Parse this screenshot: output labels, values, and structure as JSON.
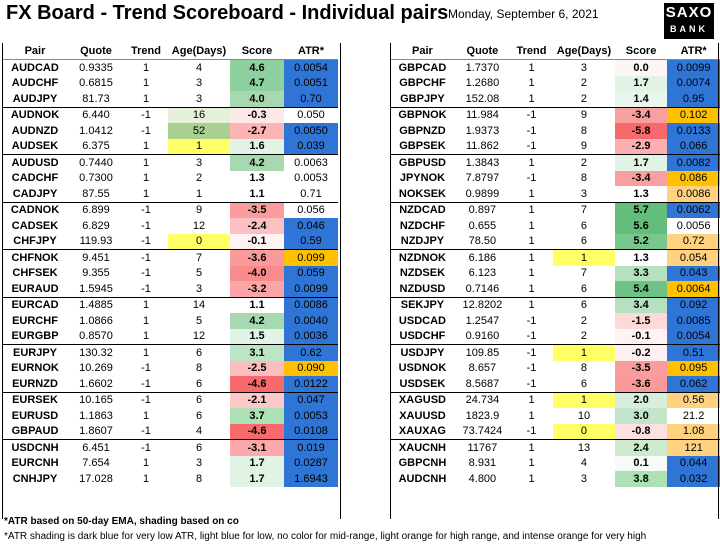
{
  "header": {
    "title": "FX Board - Trend Scoreboard - Individual pairs",
    "date": "Monday, September 6, 2021",
    "logo_line1": "SAXO",
    "logo_line2": "BANK"
  },
  "columns": [
    "Pair",
    "Quote",
    "Trend",
    "Age(Days)",
    "Score",
    "ATR*"
  ],
  "colors": {
    "score_green_strong": "#63be7b",
    "score_green_mid": "#8fd19e",
    "score_green_light": "#c6e8cd",
    "score_red_strong": "#f8696b",
    "score_red_mid": "#f9999a",
    "score_red_light": "#fcd2d2",
    "age_yellow": "#ffff66",
    "age_green": "#a9d08e",
    "atr_dark_blue": "#2e75d6",
    "atr_light_blue": "#9dc3e6",
    "atr_light_orange": "#ffd27f",
    "atr_orange": "#ffa500"
  },
  "left_rows": [
    {
      "pair": "AUDCAD",
      "quote": "0.9335",
      "trend": "1",
      "age": "4",
      "score": "4.6",
      "atr": "0.0054",
      "sc": "#8fd19e",
      "ac": "#2e75d6",
      "ag": "",
      "sep": true
    },
    {
      "pair": "AUDCHF",
      "quote": "0.6815",
      "trend": "1",
      "age": "3",
      "score": "4.7",
      "atr": "0.0051",
      "sc": "#8fd19e",
      "ac": "#2e75d6",
      "ag": ""
    },
    {
      "pair": "AUDJPY",
      "quote": "81.73",
      "trend": "1",
      "age": "3",
      "score": "4.0",
      "atr": "0.70",
      "sc": "#a6d9b0",
      "ac": "#2e75d6",
      "ag": ""
    },
    {
      "pair": "AUDNOK",
      "quote": "6.440",
      "trend": "-1",
      "age": "16",
      "score": "-0.3",
      "atr": "0.050",
      "sc": "#fde8e8",
      "ac": "",
      "ag": "#e4f0d9",
      "sep": true
    },
    {
      "pair": "AUDNZD",
      "quote": "1.0412",
      "trend": "-1",
      "age": "52",
      "score": "-2.7",
      "atr": "0.0050",
      "sc": "#fbb3b4",
      "ac": "#2e75d6",
      "ag": "#a9d08e"
    },
    {
      "pair": "AUDSEK",
      "quote": "6.375",
      "trend": "1",
      "age": "1",
      "score": "1.6",
      "atr": "0.039",
      "sc": "#e1f3e5",
      "ac": "#2e75d6",
      "ag": "#ffff66"
    },
    {
      "pair": "AUDUSD",
      "quote": "0.7440",
      "trend": "1",
      "age": "3",
      "score": "4.2",
      "atr": "0.0063",
      "sc": "#a6d9b0",
      "ac": "",
      "ag": "",
      "sep": true
    },
    {
      "pair": "CADCHF",
      "quote": "0.7300",
      "trend": "1",
      "age": "2",
      "score": "1.3",
      "atr": "0.0053",
      "sc": "",
      "ac": "",
      "ag": ""
    },
    {
      "pair": "CADJPY",
      "quote": "87.55",
      "trend": "1",
      "age": "1",
      "score": "1.1",
      "atr": "0.71",
      "sc": "",
      "ac": "",
      "ag": ""
    },
    {
      "pair": "CADNOK",
      "quote": "6.899",
      "trend": "-1",
      "age": "9",
      "score": "-3.5",
      "atr": "0.056",
      "sc": "#fa9c9d",
      "ac": "",
      "ag": "",
      "sep": true
    },
    {
      "pair": "CADSEK",
      "quote": "6.829",
      "trend": "-1",
      "age": "12",
      "score": "-2.4",
      "atr": "0.046",
      "sc": "#fbc0c1",
      "ac": "#2e75d6",
      "ag": ""
    },
    {
      "pair": "CHFJPY",
      "quote": "119.93",
      "trend": "-1",
      "age": "0",
      "score": "-0.1",
      "atr": "0.59",
      "sc": "#fef2f2",
      "ac": "#2e75d6",
      "ag": "#ffff66"
    },
    {
      "pair": "CHFNOK",
      "quote": "9.451",
      "trend": "-1",
      "age": "7",
      "score": "-3.6",
      "atr": "0.099",
      "sc": "#fa9a9b",
      "ac": "#ffc000",
      "ag": "",
      "sep": true
    },
    {
      "pair": "CHFSEK",
      "quote": "9.355",
      "trend": "-1",
      "age": "5",
      "score": "-4.0",
      "atr": "0.059",
      "sc": "#f98b8c",
      "ac": "#2e75d6",
      "ag": ""
    },
    {
      "pair": "EURAUD",
      "quote": "1.5945",
      "trend": "-1",
      "age": "3",
      "score": "-3.2",
      "atr": "0.0099",
      "sc": "#fba5a6",
      "ac": "#2e75d6",
      "ag": ""
    },
    {
      "pair": "EURCAD",
      "quote": "1.4885",
      "trend": "1",
      "age": "14",
      "score": "1.1",
      "atr": "0.0086",
      "sc": "",
      "ac": "#2e75d6",
      "ag": "",
      "sep": true
    },
    {
      "pair": "EURCHF",
      "quote": "1.0866",
      "trend": "1",
      "age": "5",
      "score": "4.2",
      "atr": "0.0040",
      "sc": "#a6d9b0",
      "ac": "#2e75d6",
      "ag": ""
    },
    {
      "pair": "EURGBP",
      "quote": "0.8570",
      "trend": "1",
      "age": "12",
      "score": "1.5",
      "atr": "0.0036",
      "sc": "#e1f3e5",
      "ac": "#2e75d6",
      "ag": ""
    },
    {
      "pair": "EURJPY",
      "quote": "130.32",
      "trend": "1",
      "age": "6",
      "score": "3.1",
      "atr": "0.62",
      "sc": "#bde4c5",
      "ac": "#2e75d6",
      "ag": "",
      "sep": true
    },
    {
      "pair": "EURNOK",
      "quote": "10.269",
      "trend": "-1",
      "age": "8",
      "score": "-2.5",
      "atr": "0.090",
      "sc": "#fbbdbe",
      "ac": "#ffc000",
      "ag": ""
    },
    {
      "pair": "EURNZD",
      "quote": "1.6602",
      "trend": "-1",
      "age": "6",
      "score": "-4.6",
      "atr": "0.0122",
      "sc": "#f8696b",
      "ac": "#2e75d6",
      "ag": ""
    },
    {
      "pair": "EURSEK",
      "quote": "10.165",
      "trend": "-1",
      "age": "6",
      "score": "-2.1",
      "atr": "0.047",
      "sc": "#fcc8c8",
      "ac": "#2e75d6",
      "ag": "",
      "sep": true
    },
    {
      "pair": "EURUSD",
      "quote": "1.1863",
      "trend": "1",
      "age": "6",
      "score": "3.7",
      "atr": "0.0053",
      "sc": "#ade0b5",
      "ac": "#2e75d6",
      "ag": ""
    },
    {
      "pair": "GBPAUD",
      "quote": "1.8607",
      "trend": "-1",
      "age": "4",
      "score": "-4.6",
      "atr": "0.0108",
      "sc": "#f8696b",
      "ac": "#2e75d6",
      "ag": ""
    },
    {
      "pair": "USDCNH",
      "quote": "6.451",
      "trend": "-1",
      "age": "6",
      "score": "-3.1",
      "atr": "0.019",
      "sc": "#fba9aa",
      "ac": "#2e75d6",
      "ag": "",
      "sep": true
    },
    {
      "pair": "EURCNH",
      "quote": "7.654",
      "trend": "1",
      "age": "3",
      "score": "1.7",
      "atr": "0.0287",
      "sc": "#e1f3e5",
      "ac": "#2e75d6",
      "ag": ""
    },
    {
      "pair": "CNHJPY",
      "quote": "17.028",
      "trend": "1",
      "age": "8",
      "score": "1.7",
      "atr": "1.6943",
      "sc": "#e1f3e5",
      "ac": "#2e75d6",
      "ag": ""
    }
  ],
  "right_rows": [
    {
      "pair": "GBPCAD",
      "quote": "1.7370",
      "trend": "1",
      "age": "3",
      "score": "0.0",
      "atr": "0.0099",
      "sc": "#fef5f5",
      "ac": "#2e75d6",
      "ag": "",
      "sep": true
    },
    {
      "pair": "GBPCHF",
      "quote": "1.2680",
      "trend": "1",
      "age": "2",
      "score": "1.7",
      "atr": "0.0074",
      "sc": "#e1f3e5",
      "ac": "#2e75d6",
      "ag": ""
    },
    {
      "pair": "GBPJPY",
      "quote": "152.08",
      "trend": "1",
      "age": "2",
      "score": "1.4",
      "atr": "0.95",
      "sc": "#e9f6ec",
      "ac": "#2e75d6",
      "ag": ""
    },
    {
      "pair": "GBPNOK",
      "quote": "11.984",
      "trend": "-1",
      "age": "9",
      "score": "-3.4",
      "atr": "0.102",
      "sc": "#fa9fa0",
      "ac": "#ffc000",
      "ag": "",
      "sep": true
    },
    {
      "pair": "GBPNZD",
      "quote": "1.9373",
      "trend": "-1",
      "age": "8",
      "score": "-5.8",
      "atr": "0.0133",
      "sc": "#f8696b",
      "ac": "#2e75d6",
      "ag": ""
    },
    {
      "pair": "GBPSEK",
      "quote": "11.862",
      "trend": "-1",
      "age": "9",
      "score": "-2.9",
      "atr": "0.066",
      "sc": "#fbafb0",
      "ac": "#2e75d6",
      "ag": ""
    },
    {
      "pair": "GBPUSD",
      "quote": "1.3843",
      "trend": "1",
      "age": "2",
      "score": "1.7",
      "atr": "0.0082",
      "sc": "#e1f3e5",
      "ac": "#2e75d6",
      "ag": "",
      "sep": true
    },
    {
      "pair": "JPYNOK",
      "quote": "7.8797",
      "trend": "-1",
      "age": "8",
      "score": "-3.4",
      "atr": "0.086",
      "sc": "#fa9fa0",
      "ac": "#ffc000",
      "ag": ""
    },
    {
      "pair": "NOKSEK",
      "quote": "0.9899",
      "trend": "1",
      "age": "3",
      "score": "1.3",
      "atr": "0.0086",
      "sc": "",
      "ac": "#ffd27f",
      "ag": ""
    },
    {
      "pair": "NZDCAD",
      "quote": "0.897",
      "trend": "1",
      "age": "7",
      "score": "5.7",
      "atr": "0.0062",
      "sc": "#63be7b",
      "ac": "#2e75d6",
      "ag": "",
      "sep": true
    },
    {
      "pair": "NZDCHF",
      "quote": "0.655",
      "trend": "1",
      "age": "6",
      "score": "5.6",
      "atr": "0.0056",
      "sc": "#63be7b",
      "ac": "",
      "ag": ""
    },
    {
      "pair": "NZDJPY",
      "quote": "78.50",
      "trend": "1",
      "age": "6",
      "score": "5.2",
      "atr": "0.72",
      "sc": "#78c78c",
      "ac": "#ffd27f",
      "ag": ""
    },
    {
      "pair": "NZDNOK",
      "quote": "6.186",
      "trend": "1",
      "age": "1",
      "score": "1.3",
      "atr": "0.054",
      "sc": "",
      "ac": "#ffd27f",
      "ag": "#ffff66",
      "sep": true
    },
    {
      "pair": "NZDSEK",
      "quote": "6.123",
      "trend": "1",
      "age": "7",
      "score": "3.3",
      "atr": "0.043",
      "sc": "#b6e1bf",
      "ac": "#2e75d6",
      "ag": ""
    },
    {
      "pair": "NZDUSD",
      "quote": "0.7146",
      "trend": "1",
      "age": "6",
      "score": "5.4",
      "atr": "0.0064",
      "sc": "#6ec286",
      "ac": "#ffc000",
      "ag": ""
    },
    {
      "pair": "SEKJPY",
      "quote": "12.8202",
      "trend": "1",
      "age": "6",
      "score": "3.4",
      "atr": "0.092",
      "sc": "#b6e1bf",
      "ac": "#2e75d6",
      "ag": "",
      "sep": true
    },
    {
      "pair": "USDCAD",
      "quote": "1.2547",
      "trent": "",
      "trend": "-1",
      "age": "2",
      "score": "-1.5",
      "atr": "0.0085",
      "sc": "#fddada",
      "ac": "#2e75d6",
      "ag": ""
    },
    {
      "pair": "USDCHF",
      "quote": "0.9160",
      "trend": "-1",
      "age": "2",
      "score": "-0.1",
      "atr": "0.0054",
      "sc": "#fef2f2",
      "ac": "#2e75d6",
      "ag": ""
    },
    {
      "pair": "USDJPY",
      "quote": "109.85",
      "trend": "-1",
      "age": "1",
      "score": "-0.2",
      "atr": "0.51",
      "sc": "#fef0f0",
      "ac": "#2e75d6",
      "ag": "#ffff66",
      "sep": true
    },
    {
      "pair": "USDNOK",
      "quote": "8.657",
      "trend": "-1",
      "age": "8",
      "score": "-3.5",
      "atr": "0.095",
      "sc": "#fa9c9d",
      "ac": "#ffc000",
      "ag": ""
    },
    {
      "pair": "USDSEK",
      "quote": "8.5687",
      "trend": "-1",
      "age": "6",
      "score": "-3.6",
      "atr": "0.062",
      "sc": "#fa9a9b",
      "ac": "#2e75d6",
      "ag": ""
    },
    {
      "pair": "XAGUSD",
      "quote": "24.734",
      "trend": "1",
      "age": "1",
      "score": "2.0",
      "atr": "0.56",
      "sc": "#d6eedb",
      "ac": "#ffd27f",
      "ag": "#ffff66",
      "sep": true
    },
    {
      "pair": "XAUUSD",
      "quote": "1823.9",
      "trend": "1",
      "age": "10",
      "score": "3.0",
      "atr": "21.2",
      "sc": "#c3e6ca",
      "ac": "",
      "ag": ""
    },
    {
      "pair": "XAUXAG",
      "quote": "73.7424",
      "trend": "-1",
      "age": "0",
      "score": "-0.8",
      "atr": "1.08",
      "sc": "#fde0e0",
      "ac": "#ffd27f",
      "ag": "#ffff66"
    },
    {
      "pair": "XAUCNH",
      "quote": "11767",
      "trend": "1",
      "age": "13",
      "score": "2.4",
      "atr": "121",
      "sc": "#cdeacf",
      "ac": "#ffd27f",
      "ag": "",
      "sep": true
    },
    {
      "pair": "GBPCNH",
      "quote": "8.931",
      "trend": "1",
      "age": "4",
      "score": "0.1",
      "atr": "0.044",
      "sc": "#f6fbf7",
      "ac": "#2e75d6",
      "ag": ""
    },
    {
      "pair": "AUDCNH",
      "quote": "4.800",
      "trend": "1",
      "age": "3",
      "score": "3.8",
      "atr": "0.032",
      "sc": "#ade0b5",
      "ac": "#2e75d6",
      "ag": ""
    }
  ],
  "footnotes": {
    "note1": "*ATR based on 50-day EMA, shading based on co",
    "note2": "*ATR shading is dark blue for very low ATR, light blue for low, no color for mid-range, light orange for high range, and intense orange for very high"
  }
}
